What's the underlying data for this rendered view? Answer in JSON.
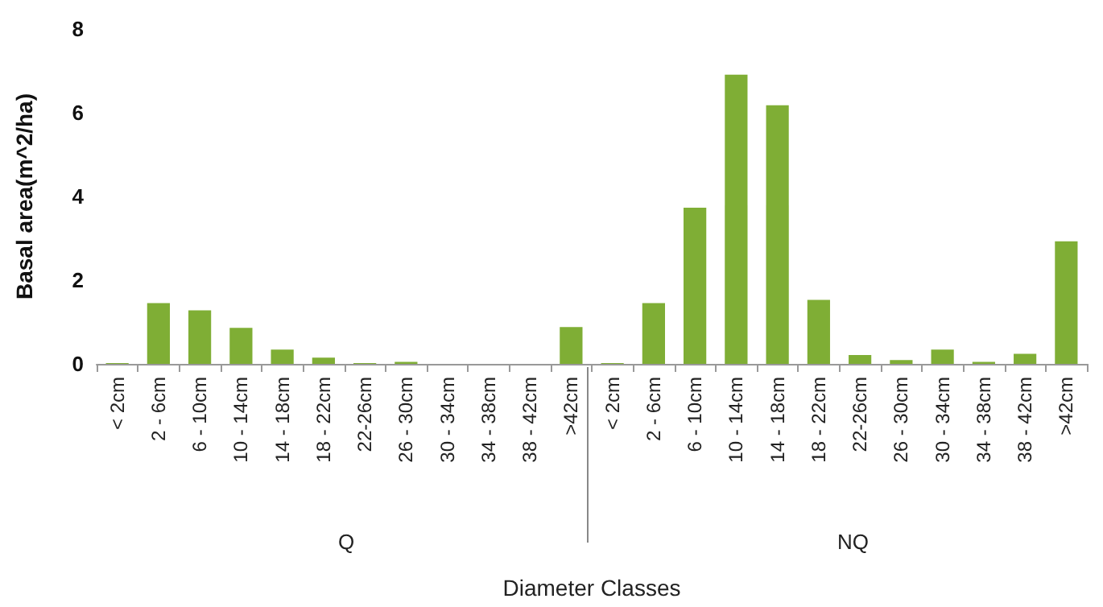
{
  "chart_data": {
    "type": "bar",
    "xlabel": "Diameter Classes",
    "ylabel": "Basal area(m^2/ha)",
    "categories": [
      "< 2cm",
      "2 - 6cm",
      "6 - 10cm",
      "10 - 14cm",
      "14 - 18cm",
      "18 - 22cm",
      "22-26cm",
      "26 - 30cm",
      "30 - 34cm",
      "34 - 38cm",
      "38 - 42cm",
      ">42cm",
      "< 2cm",
      "2 - 6cm",
      "6 - 10cm",
      "10 - 14cm",
      "14 - 18cm",
      "18 - 22cm",
      "22-26cm",
      "26 - 30cm",
      "30 - 34cm",
      "34 - 38cm",
      "38 - 42cm",
      ">42cm"
    ],
    "values": [
      0.02,
      1.45,
      1.28,
      0.86,
      0.34,
      0.15,
      0.02,
      0.05,
      0,
      0,
      0,
      0.88,
      0.02,
      1.45,
      3.73,
      6.91,
      6.18,
      1.53,
      0.21,
      0.09,
      0.34,
      0.05,
      0.24,
      2.93
    ],
    "color": "#7fae35",
    "ylim": [
      0,
      8
    ],
    "yticks": [
      0,
      2,
      4,
      6,
      8
    ],
    "annotations": [
      "Q",
      "NQ"
    ]
  }
}
